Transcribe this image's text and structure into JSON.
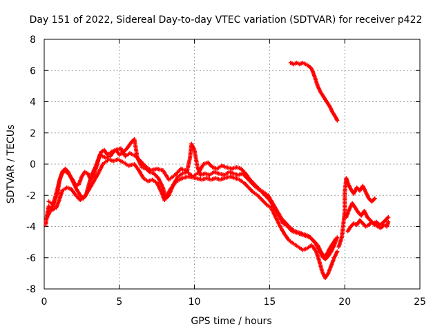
{
  "chart_data": {
    "type": "scatter",
    "title": "Day 151 of 2022, Sidereal Day-to-day VTEC variation (SDTVAR) for receiver p422",
    "xlabel": "GPS time / hours",
    "ylabel": "SDTVAR / TECUs",
    "xlim": [
      0,
      25
    ],
    "ylim": [
      -8,
      8
    ],
    "xticks": [
      0,
      5,
      10,
      15,
      20,
      25
    ],
    "yticks": [
      -8,
      -6,
      -4,
      -2,
      0,
      2,
      4,
      6,
      8
    ],
    "grid": true,
    "marker": "+",
    "color": "#ff0000",
    "series": [
      {
        "name": "sdtvar-main-trace",
        "points": [
          [
            0.1,
            -3.9
          ],
          [
            0.2,
            -3.2
          ],
          [
            0.3,
            -2.7
          ],
          [
            0.5,
            -2.9
          ],
          [
            0.7,
            -2.3
          ],
          [
            0.9,
            -1.8
          ],
          [
            1.0,
            -1.1
          ],
          [
            1.2,
            -0.5
          ],
          [
            1.4,
            -0.3
          ],
          [
            1.6,
            -0.5
          ],
          [
            1.8,
            -0.9
          ],
          [
            2.0,
            -1.3
          ],
          [
            2.2,
            -1.7
          ],
          [
            2.4,
            -2.0
          ],
          [
            2.6,
            -2.2
          ],
          [
            2.8,
            -1.9
          ],
          [
            3.0,
            -1.2
          ],
          [
            3.2,
            -0.6
          ],
          [
            3.4,
            -0.2
          ],
          [
            3.6,
            0.3
          ],
          [
            3.8,
            0.8
          ],
          [
            4.0,
            0.9
          ],
          [
            4.2,
            0.6
          ],
          [
            4.5,
            0.8
          ],
          [
            4.8,
            0.9
          ],
          [
            5.0,
            0.6
          ],
          [
            5.2,
            0.7
          ],
          [
            5.5,
            1.0
          ],
          [
            5.8,
            1.4
          ],
          [
            6.0,
            1.6
          ],
          [
            6.2,
            0.4
          ],
          [
            6.5,
            -0.2
          ],
          [
            6.8,
            -0.3
          ],
          [
            7.0,
            -0.5
          ],
          [
            7.3,
            -0.6
          ],
          [
            7.6,
            -0.9
          ],
          [
            7.9,
            -1.5
          ],
          [
            8.1,
            -2.2
          ],
          [
            8.3,
            -2.0
          ],
          [
            8.6,
            -1.3
          ],
          [
            8.9,
            -0.8
          ],
          [
            9.2,
            -0.6
          ],
          [
            9.5,
            -0.5
          ],
          [
            9.7,
            0.4
          ],
          [
            9.8,
            1.3
          ],
          [
            10.0,
            0.9
          ],
          [
            10.2,
            -0.2
          ],
          [
            10.4,
            -0.7
          ],
          [
            10.7,
            -0.6
          ],
          [
            11.0,
            -0.7
          ],
          [
            11.3,
            -0.5
          ],
          [
            11.6,
            -0.6
          ],
          [
            12.0,
            -0.7
          ],
          [
            12.3,
            -0.5
          ],
          [
            12.6,
            -0.6
          ],
          [
            12.9,
            -0.7
          ],
          [
            13.2,
            -0.6
          ],
          [
            13.5,
            -0.9
          ],
          [
            13.8,
            -1.2
          ],
          [
            14.1,
            -1.5
          ],
          [
            14.4,
            -1.7
          ],
          [
            14.7,
            -2.0
          ],
          [
            15.0,
            -2.3
          ],
          [
            15.3,
            -2.8
          ],
          [
            15.6,
            -3.3
          ],
          [
            15.9,
            -3.8
          ],
          [
            16.2,
            -4.0
          ],
          [
            16.5,
            -4.3
          ],
          [
            16.8,
            -4.4
          ],
          [
            17.1,
            -4.5
          ],
          [
            17.4,
            -4.6
          ],
          [
            17.7,
            -4.7
          ],
          [
            18.0,
            -5.0
          ],
          [
            18.3,
            -5.5
          ],
          [
            18.5,
            -5.9
          ],
          [
            18.7,
            -6.1
          ],
          [
            18.9,
            -5.9
          ],
          [
            19.1,
            -5.6
          ],
          [
            19.3,
            -5.2
          ],
          [
            19.5,
            -4.7
          ]
        ]
      },
      {
        "name": "sdtvar-upper-trace",
        "points": [
          [
            0.3,
            -2.4
          ],
          [
            0.6,
            -2.6
          ],
          [
            0.9,
            -1.5
          ],
          [
            1.1,
            -0.8
          ],
          [
            1.3,
            -0.4
          ],
          [
            1.6,
            -0.6
          ],
          [
            1.9,
            -1.0
          ],
          [
            2.1,
            -1.4
          ],
          [
            2.3,
            -1.3
          ],
          [
            2.5,
            -0.8
          ],
          [
            2.7,
            -0.5
          ],
          [
            2.9,
            -0.6
          ],
          [
            3.1,
            -1.0
          ],
          [
            3.3,
            -0.7
          ],
          [
            3.5,
            -0.1
          ],
          [
            3.7,
            0.6
          ],
          [
            4.1,
            0.4
          ],
          [
            4.4,
            0.5
          ],
          [
            4.7,
            0.9
          ],
          [
            5.1,
            1.0
          ],
          [
            5.4,
            0.5
          ],
          [
            5.7,
            0.7
          ],
          [
            6.1,
            0.5
          ],
          [
            6.4,
            0.2
          ],
          [
            6.7,
            -0.1
          ],
          [
            7.1,
            -0.4
          ],
          [
            7.5,
            -0.3
          ],
          [
            7.9,
            -0.4
          ],
          [
            8.3,
            -1.0
          ],
          [
            8.7,
            -0.7
          ],
          [
            9.1,
            -0.3
          ],
          [
            9.4,
            -0.4
          ],
          [
            9.9,
            -0.8
          ],
          [
            10.3,
            -0.5
          ],
          [
            10.6,
            0.0
          ],
          [
            10.9,
            0.1
          ],
          [
            11.2,
            -0.2
          ],
          [
            11.5,
            -0.3
          ],
          [
            11.8,
            -0.1
          ],
          [
            12.1,
            -0.2
          ],
          [
            12.5,
            -0.3
          ],
          [
            12.8,
            -0.2
          ],
          [
            13.1,
            -0.3
          ],
          [
            13.4,
            -0.6
          ],
          [
            13.7,
            -1.0
          ],
          [
            14.0,
            -1.3
          ],
          [
            14.3,
            -1.6
          ],
          [
            14.6,
            -1.8
          ],
          [
            14.9,
            -2.0
          ],
          [
            15.2,
            -2.5
          ],
          [
            15.5,
            -3.0
          ],
          [
            15.8,
            -3.5
          ],
          [
            16.1,
            -3.8
          ],
          [
            16.4,
            -4.1
          ],
          [
            16.7,
            -4.3
          ],
          [
            17.0,
            -4.4
          ],
          [
            17.3,
            -4.5
          ],
          [
            17.6,
            -4.6
          ],
          [
            17.9,
            -4.9
          ],
          [
            18.2,
            -5.2
          ],
          [
            18.4,
            -5.6
          ],
          [
            18.6,
            -5.9
          ],
          [
            18.8,
            -5.8
          ],
          [
            19.0,
            -5.4
          ],
          [
            19.2,
            -5.1
          ],
          [
            19.4,
            -4.8
          ]
        ]
      },
      {
        "name": "sdtvar-lower-trace",
        "points": [
          [
            0.2,
            -3.4
          ],
          [
            0.4,
            -3.0
          ],
          [
            0.8,
            -2.8
          ],
          [
            1.0,
            -2.3
          ],
          [
            1.2,
            -1.7
          ],
          [
            1.5,
            -1.5
          ],
          [
            1.8,
            -1.6
          ],
          [
            2.1,
            -2.0
          ],
          [
            2.4,
            -2.3
          ],
          [
            2.7,
            -2.1
          ],
          [
            3.0,
            -1.6
          ],
          [
            3.3,
            -1.1
          ],
          [
            3.6,
            -0.6
          ],
          [
            3.9,
            0.0
          ],
          [
            4.3,
            0.3
          ],
          [
            4.6,
            0.2
          ],
          [
            4.9,
            0.3
          ],
          [
            5.3,
            0.1
          ],
          [
            5.6,
            -0.1
          ],
          [
            6.0,
            0.0
          ],
          [
            6.3,
            -0.4
          ],
          [
            6.6,
            -0.9
          ],
          [
            6.9,
            -1.1
          ],
          [
            7.2,
            -1.0
          ],
          [
            7.5,
            -1.2
          ],
          [
            7.8,
            -1.8
          ],
          [
            8.0,
            -2.3
          ],
          [
            8.4,
            -1.6
          ],
          [
            8.8,
            -1.1
          ],
          [
            9.2,
            -0.9
          ],
          [
            9.6,
            -0.8
          ],
          [
            10.1,
            -0.9
          ],
          [
            10.5,
            -1.0
          ],
          [
            10.8,
            -0.9
          ],
          [
            11.1,
            -1.0
          ],
          [
            11.4,
            -0.9
          ],
          [
            11.7,
            -1.0
          ],
          [
            12.0,
            -0.9
          ],
          [
            12.4,
            -0.8
          ],
          [
            12.7,
            -0.9
          ],
          [
            13.0,
            -1.0
          ],
          [
            13.3,
            -1.2
          ],
          [
            13.6,
            -1.5
          ],
          [
            13.9,
            -1.8
          ],
          [
            14.2,
            -2.0
          ],
          [
            14.5,
            -2.3
          ],
          [
            14.8,
            -2.6
          ],
          [
            15.1,
            -2.8
          ],
          [
            15.4,
            -3.4
          ],
          [
            15.7,
            -4.0
          ],
          [
            16.0,
            -4.5
          ],
          [
            16.3,
            -4.9
          ],
          [
            16.6,
            -5.1
          ],
          [
            16.9,
            -5.3
          ],
          [
            17.2,
            -5.5
          ],
          [
            17.5,
            -5.4
          ],
          [
            17.8,
            -5.2
          ],
          [
            18.1,
            -5.6
          ],
          [
            18.3,
            -6.2
          ],
          [
            18.5,
            -6.9
          ],
          [
            18.7,
            -7.3
          ],
          [
            18.9,
            -7.0
          ],
          [
            19.1,
            -6.5
          ],
          [
            19.3,
            -6.0
          ],
          [
            19.5,
            -5.6
          ]
        ]
      },
      {
        "name": "sdtvar-tail-traces",
        "points": [
          [
            19.6,
            -5.3
          ],
          [
            19.8,
            -4.7
          ],
          [
            19.9,
            -3.9
          ],
          [
            20.0,
            -3.0
          ],
          [
            20.0,
            -1.8
          ],
          [
            20.1,
            -0.9
          ],
          [
            20.2,
            -1.2
          ],
          [
            20.4,
            -1.6
          ],
          [
            20.6,
            -1.9
          ],
          [
            20.8,
            -1.5
          ],
          [
            21.0,
            -1.7
          ],
          [
            21.2,
            -1.4
          ],
          [
            21.4,
            -1.8
          ],
          [
            21.6,
            -2.2
          ],
          [
            21.8,
            -2.4
          ],
          [
            22.0,
            -2.2
          ],
          [
            20.1,
            -3.4
          ],
          [
            20.3,
            -2.9
          ],
          [
            20.5,
            -2.5
          ],
          [
            20.7,
            -2.8
          ],
          [
            20.9,
            -3.1
          ],
          [
            21.1,
            -3.3
          ],
          [
            21.3,
            -3.0
          ],
          [
            21.5,
            -3.4
          ],
          [
            21.7,
            -3.6
          ],
          [
            21.9,
            -3.8
          ],
          [
            22.1,
            -3.7
          ],
          [
            22.3,
            -3.9
          ],
          [
            22.5,
            -3.8
          ],
          [
            22.7,
            -3.6
          ],
          [
            22.9,
            -3.4
          ],
          [
            20.2,
            -4.3
          ],
          [
            20.4,
            -4.0
          ],
          [
            20.6,
            -3.8
          ],
          [
            20.8,
            -3.9
          ],
          [
            21.0,
            -3.6
          ],
          [
            21.2,
            -3.8
          ],
          [
            21.4,
            -4.0
          ],
          [
            21.6,
            -3.9
          ],
          [
            21.8,
            -3.7
          ],
          [
            22.0,
            -3.9
          ],
          [
            22.2,
            -4.0
          ],
          [
            22.4,
            -4.1
          ],
          [
            22.6,
            -3.9
          ],
          [
            22.8,
            -4.0
          ],
          [
            22.9,
            -3.7
          ]
        ]
      },
      {
        "name": "sdtvar-isolated-segment",
        "points": [
          [
            16.4,
            6.5
          ],
          [
            16.6,
            6.4
          ],
          [
            16.8,
            6.5
          ],
          [
            17.0,
            6.4
          ],
          [
            17.2,
            6.5
          ],
          [
            17.4,
            6.4
          ],
          [
            17.6,
            6.3
          ],
          [
            17.8,
            6.1
          ],
          [
            18.0,
            5.6
          ],
          [
            18.2,
            5.0
          ],
          [
            18.4,
            4.6
          ],
          [
            18.6,
            4.3
          ],
          [
            18.8,
            4.0
          ],
          [
            19.0,
            3.7
          ],
          [
            19.2,
            3.3
          ],
          [
            19.4,
            3.0
          ],
          [
            19.5,
            2.8
          ]
        ]
      }
    ]
  }
}
